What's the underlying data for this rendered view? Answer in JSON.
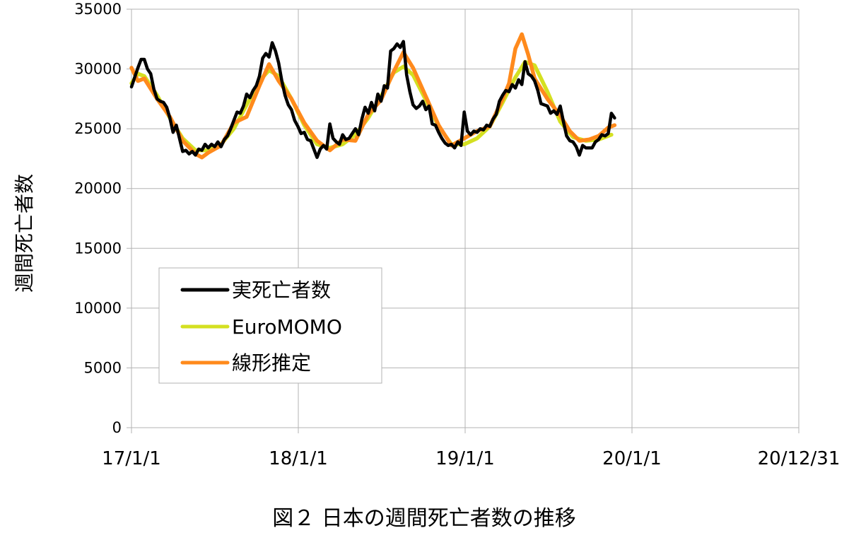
{
  "chart_data": {
    "type": "line",
    "title": "図２ 日本の週間死亡者数の推移",
    "xlabel": "",
    "ylabel": "週間死亡者数",
    "x_ticks": [
      "17/1/1",
      "18/1/1",
      "19/1/1",
      "20/1/1",
      "20/12/31"
    ],
    "x_range": [
      "2017-01-01",
      "2020-12-31"
    ],
    "y_ticks": [
      0,
      5000,
      10000,
      15000,
      20000,
      25000,
      30000,
      35000
    ],
    "ylim": [
      0,
      35000
    ],
    "grid": true,
    "legend_position": "lower-left",
    "series": [
      {
        "name": "実死亡者数",
        "color": "#000000",
        "data": [
          [
            "2017-01-01",
            28500
          ],
          [
            "2017-01-08",
            29300
          ],
          [
            "2017-01-15",
            30100
          ],
          [
            "2017-01-22",
            30800
          ],
          [
            "2017-01-29",
            30800
          ],
          [
            "2017-02-05",
            30000
          ],
          [
            "2017-02-12",
            29600
          ],
          [
            "2017-02-19",
            28300
          ],
          [
            "2017-02-26",
            27500
          ],
          [
            "2017-03-05",
            27300
          ],
          [
            "2017-03-12",
            27200
          ],
          [
            "2017-03-19",
            26800
          ],
          [
            "2017-03-26",
            25900
          ],
          [
            "2017-04-02",
            24700
          ],
          [
            "2017-04-09",
            25300
          ],
          [
            "2017-04-16",
            24200
          ],
          [
            "2017-04-23",
            23100
          ],
          [
            "2017-04-30",
            23200
          ],
          [
            "2017-05-07",
            22900
          ],
          [
            "2017-05-14",
            23100
          ],
          [
            "2017-05-21",
            22800
          ],
          [
            "2017-05-28",
            23300
          ],
          [
            "2017-06-04",
            23200
          ],
          [
            "2017-06-11",
            23700
          ],
          [
            "2017-06-18",
            23400
          ],
          [
            "2017-06-25",
            23700
          ],
          [
            "2017-07-02",
            23500
          ],
          [
            "2017-07-09",
            23900
          ],
          [
            "2017-07-16",
            23500
          ],
          [
            "2017-07-23",
            24100
          ],
          [
            "2017-07-30",
            24400
          ],
          [
            "2017-08-06",
            25000
          ],
          [
            "2017-08-13",
            25700
          ],
          [
            "2017-08-20",
            26400
          ],
          [
            "2017-08-27",
            26300
          ],
          [
            "2017-09-03",
            26900
          ],
          [
            "2017-09-10",
            27900
          ],
          [
            "2017-09-17",
            27600
          ],
          [
            "2017-09-24",
            28200
          ],
          [
            "2017-10-01",
            28600
          ],
          [
            "2017-10-08",
            29400
          ],
          [
            "2017-10-15",
            30900
          ],
          [
            "2017-10-22",
            31300
          ],
          [
            "2017-10-29",
            31000
          ],
          [
            "2017-11-05",
            32200
          ],
          [
            "2017-11-12",
            31500
          ],
          [
            "2017-11-19",
            30500
          ],
          [
            "2017-11-26",
            29000
          ],
          [
            "2017-12-03",
            27800
          ],
          [
            "2017-12-10",
            27000
          ],
          [
            "2017-12-17",
            26600
          ],
          [
            "2017-12-24",
            25700
          ],
          [
            "2017-12-31",
            25200
          ],
          [
            "2018-01-07",
            24600
          ],
          [
            "2018-01-14",
            24700
          ],
          [
            "2018-01-21",
            24100
          ],
          [
            "2018-01-28",
            24000
          ],
          [
            "2018-02-04",
            23300
          ],
          [
            "2018-02-11",
            22600
          ],
          [
            "2018-02-18",
            23300
          ],
          [
            "2018-02-25",
            23600
          ],
          [
            "2018-03-04",
            23300
          ],
          [
            "2018-03-11",
            25400
          ],
          [
            "2018-03-18",
            24200
          ],
          [
            "2018-03-25",
            23900
          ],
          [
            "2018-04-01",
            23700
          ],
          [
            "2018-04-08",
            24500
          ],
          [
            "2018-04-15",
            24100
          ],
          [
            "2018-04-22",
            24200
          ],
          [
            "2018-04-29",
            24600
          ],
          [
            "2018-05-06",
            25000
          ],
          [
            "2018-05-13",
            24500
          ],
          [
            "2018-05-20",
            25800
          ],
          [
            "2018-05-27",
            26800
          ],
          [
            "2018-06-03",
            26300
          ],
          [
            "2018-06-10",
            27200
          ],
          [
            "2018-06-17",
            26500
          ],
          [
            "2018-06-24",
            27900
          ],
          [
            "2018-07-01",
            27300
          ],
          [
            "2018-07-08",
            28600
          ],
          [
            "2018-07-15",
            28400
          ],
          [
            "2018-07-22",
            31500
          ],
          [
            "2018-07-29",
            31700
          ],
          [
            "2018-08-05",
            32100
          ],
          [
            "2018-08-12",
            31800
          ],
          [
            "2018-08-19",
            32300
          ],
          [
            "2018-08-26",
            29500
          ],
          [
            "2018-09-02",
            28100
          ],
          [
            "2018-09-09",
            27000
          ],
          [
            "2018-09-16",
            26700
          ],
          [
            "2018-09-23",
            26900
          ],
          [
            "2018-09-30",
            27300
          ],
          [
            "2018-10-07",
            26600
          ],
          [
            "2018-10-14",
            26900
          ],
          [
            "2018-10-21",
            25400
          ],
          [
            "2018-10-28",
            25300
          ],
          [
            "2018-11-04",
            24700
          ],
          [
            "2018-11-11",
            24200
          ],
          [
            "2018-11-18",
            23800
          ],
          [
            "2018-11-25",
            23600
          ],
          [
            "2018-12-02",
            23700
          ],
          [
            "2018-12-09",
            23400
          ],
          [
            "2018-12-16",
            23900
          ],
          [
            "2018-12-23",
            23600
          ],
          [
            "2018-12-30",
            26400
          ],
          [
            "2019-01-06",
            24800
          ],
          [
            "2019-01-13",
            24500
          ],
          [
            "2019-01-20",
            24800
          ],
          [
            "2019-01-27",
            24700
          ],
          [
            "2019-02-03",
            25000
          ],
          [
            "2019-02-10",
            24900
          ],
          [
            "2019-02-17",
            25300
          ],
          [
            "2019-02-24",
            25200
          ],
          [
            "2019-03-03",
            25800
          ],
          [
            "2019-03-10",
            26200
          ],
          [
            "2019-03-17",
            27300
          ],
          [
            "2019-03-24",
            27800
          ],
          [
            "2019-03-31",
            28200
          ],
          [
            "2019-04-07",
            28100
          ],
          [
            "2019-04-14",
            28700
          ],
          [
            "2019-04-21",
            28400
          ],
          [
            "2019-04-28",
            29100
          ],
          [
            "2019-05-05",
            28700
          ],
          [
            "2019-05-12",
            30600
          ],
          [
            "2019-05-19",
            29600
          ],
          [
            "2019-05-26",
            29400
          ],
          [
            "2019-06-02",
            29000
          ],
          [
            "2019-06-09",
            28200
          ],
          [
            "2019-06-16",
            27100
          ],
          [
            "2019-06-23",
            27000
          ],
          [
            "2019-06-30",
            26900
          ],
          [
            "2019-07-07",
            26300
          ],
          [
            "2019-07-14",
            26500
          ],
          [
            "2019-07-21",
            26200
          ],
          [
            "2019-07-28",
            26900
          ],
          [
            "2019-08-04",
            25600
          ],
          [
            "2019-08-11",
            24400
          ],
          [
            "2019-08-18",
            24000
          ],
          [
            "2019-08-25",
            23900
          ],
          [
            "2019-09-01",
            23500
          ],
          [
            "2019-09-08",
            22800
          ],
          [
            "2019-09-15",
            23600
          ],
          [
            "2019-09-22",
            23400
          ],
          [
            "2019-09-29",
            23400
          ],
          [
            "2019-10-06",
            23400
          ],
          [
            "2019-10-13",
            23900
          ],
          [
            "2019-10-20",
            24100
          ],
          [
            "2019-10-27",
            24500
          ],
          [
            "2019-11-03",
            24400
          ],
          [
            "2019-11-10",
            24600
          ],
          [
            "2019-11-17",
            26300
          ],
          [
            "2019-11-24",
            25900
          ]
        ]
      },
      {
        "name": "EuroMOMO",
        "color": "#d4e021",
        "data": [
          [
            "2017-01-01",
            28800
          ],
          [
            "2017-01-15",
            29600
          ],
          [
            "2017-01-29",
            29400
          ],
          [
            "2017-02-26",
            27800
          ],
          [
            "2017-03-26",
            25900
          ],
          [
            "2017-04-23",
            24200
          ],
          [
            "2017-05-21",
            23200
          ],
          [
            "2017-06-18",
            23200
          ],
          [
            "2017-07-16",
            23700
          ],
          [
            "2017-08-13",
            25000
          ],
          [
            "2017-09-10",
            27000
          ],
          [
            "2017-10-08",
            29000
          ],
          [
            "2017-10-29",
            29900
          ],
          [
            "2017-11-19",
            29400
          ],
          [
            "2017-12-17",
            27500
          ],
          [
            "2018-01-14",
            25300
          ],
          [
            "2018-02-11",
            23700
          ],
          [
            "2018-03-11",
            23400
          ],
          [
            "2018-04-08",
            23700
          ],
          [
            "2018-05-06",
            24500
          ],
          [
            "2018-06-03",
            25900
          ],
          [
            "2018-07-01",
            27700
          ],
          [
            "2018-07-29",
            29700
          ],
          [
            "2018-08-19",
            30200
          ],
          [
            "2018-09-09",
            29500
          ],
          [
            "2018-10-07",
            27400
          ],
          [
            "2018-11-04",
            25200
          ],
          [
            "2018-12-02",
            23700
          ],
          [
            "2018-12-30",
            23700
          ],
          [
            "2019-01-27",
            24200
          ],
          [
            "2019-02-24",
            25200
          ],
          [
            "2019-03-24",
            27200
          ],
          [
            "2019-04-21",
            29300
          ],
          [
            "2019-05-12",
            30600
          ],
          [
            "2019-06-02",
            30300
          ],
          [
            "2019-06-30",
            28100
          ],
          [
            "2019-07-28",
            25600
          ],
          [
            "2019-08-25",
            24300
          ],
          [
            "2019-09-22",
            24000
          ],
          [
            "2019-10-20",
            24100
          ],
          [
            "2019-11-17",
            24500
          ]
        ]
      },
      {
        "name": "線形推定",
        "color": "#ff8a1c",
        "data": [
          [
            "2017-01-01",
            30100
          ],
          [
            "2017-01-15",
            29000
          ],
          [
            "2017-01-29",
            29200
          ],
          [
            "2017-02-26",
            27500
          ],
          [
            "2017-03-26",
            26000
          ],
          [
            "2017-04-23",
            24000
          ],
          [
            "2017-05-21",
            22900
          ],
          [
            "2017-06-04",
            22600
          ],
          [
            "2017-06-18",
            23000
          ],
          [
            "2017-07-16",
            23600
          ],
          [
            "2017-08-13",
            25500
          ],
          [
            "2017-09-10",
            26000
          ],
          [
            "2017-10-08",
            28600
          ],
          [
            "2017-10-29",
            30400
          ],
          [
            "2017-11-19",
            29000
          ],
          [
            "2017-12-17",
            27500
          ],
          [
            "2018-01-14",
            25500
          ],
          [
            "2018-02-11",
            24000
          ],
          [
            "2018-03-11",
            23200
          ],
          [
            "2018-04-08",
            24100
          ],
          [
            "2018-05-06",
            24000
          ],
          [
            "2018-06-03",
            26200
          ],
          [
            "2018-07-01",
            27400
          ],
          [
            "2018-07-29",
            29800
          ],
          [
            "2018-08-19",
            31400
          ],
          [
            "2018-09-09",
            30100
          ],
          [
            "2018-10-07",
            27700
          ],
          [
            "2018-11-04",
            25300
          ],
          [
            "2018-12-02",
            23600
          ],
          [
            "2018-12-30",
            24200
          ],
          [
            "2019-01-27",
            24800
          ],
          [
            "2019-02-24",
            25200
          ],
          [
            "2019-03-24",
            27500
          ],
          [
            "2019-04-07",
            28800
          ],
          [
            "2019-04-21",
            31700
          ],
          [
            "2019-05-05",
            32900
          ],
          [
            "2019-05-19",
            31200
          ],
          [
            "2019-06-02",
            29200
          ],
          [
            "2019-06-30",
            27500
          ],
          [
            "2019-07-28",
            26100
          ],
          [
            "2019-08-18",
            24800
          ],
          [
            "2019-09-08",
            24000
          ],
          [
            "2019-09-29",
            24100
          ],
          [
            "2019-10-20",
            24400
          ],
          [
            "2019-11-10",
            25100
          ],
          [
            "2019-11-24",
            25300
          ]
        ]
      }
    ]
  }
}
